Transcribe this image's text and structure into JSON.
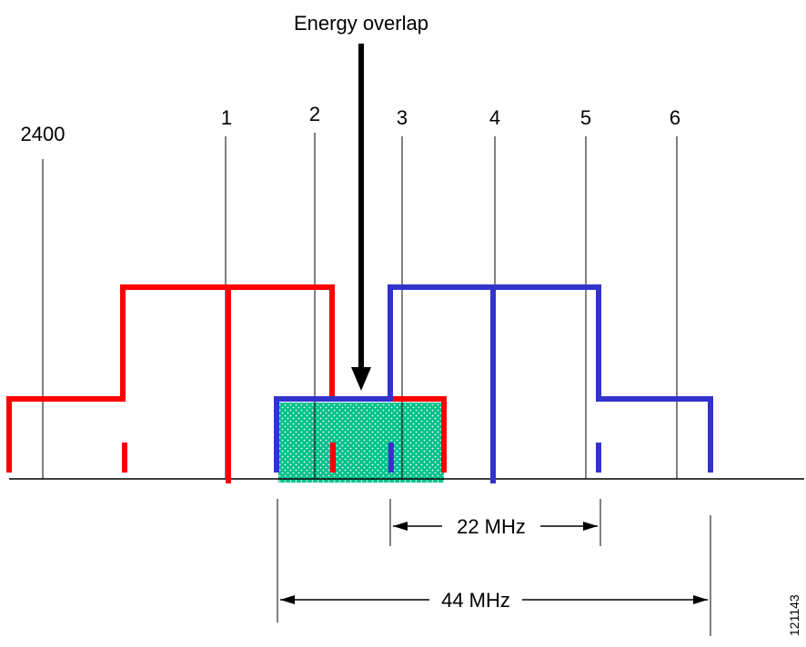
{
  "title": "Energy overlap",
  "reference_label": "2400",
  "channels": [
    "1",
    "2",
    "3",
    "4",
    "5",
    "6"
  ],
  "dimensions": [
    {
      "label": "22 MHz"
    },
    {
      "label": "44 MHz"
    }
  ],
  "figure_id": "121143",
  "colors": {
    "channel_a": "#ff0000",
    "channel_b": "#3333cc",
    "overlap_fill": "#00c08a",
    "lines": "#000000"
  }
}
